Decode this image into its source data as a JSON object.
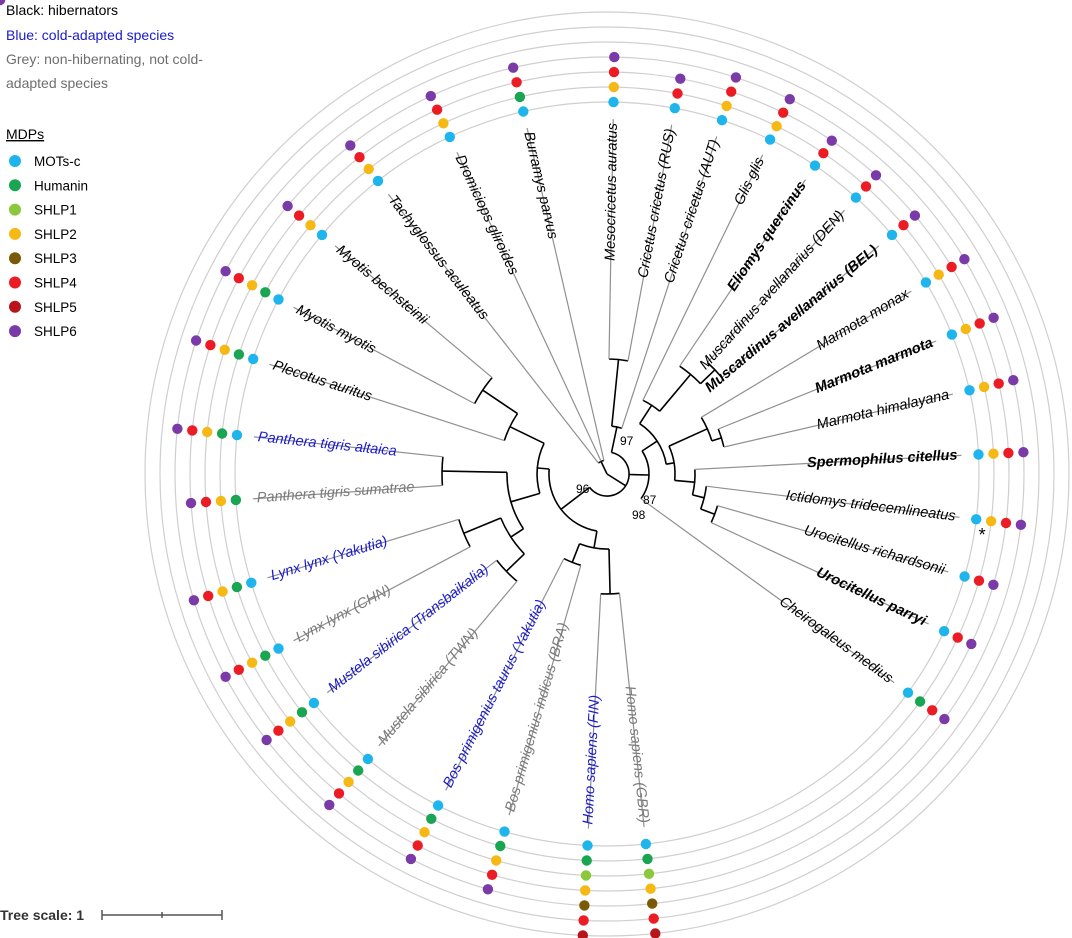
{
  "legend": {
    "lines": [
      {
        "text": "Black: hibernators",
        "color": "#000000"
      },
      {
        "text": "Blue: cold-adapted species",
        "color": "#1a1acc"
      },
      {
        "text": "Grey: non-hibernating, not cold-",
        "color": "#6e6e6e"
      },
      {
        "text": "adapted species",
        "color": "#6e6e6e"
      }
    ],
    "mdp_title": "MDPs",
    "mdps": [
      {
        "name": "MOTs-c",
        "color": "#1eb4ec"
      },
      {
        "name": "Humanin",
        "color": "#1aa552"
      },
      {
        "name": "SHLP1",
        "color": "#8cc83c"
      },
      {
        "name": "SHLP2",
        "color": "#f5b814"
      },
      {
        "name": "SHLP3",
        "color": "#7a5a05"
      },
      {
        "name": "SHLP4",
        "color": "#ec1c24"
      },
      {
        "name": "SHLP5",
        "color": "#b8141c"
      },
      {
        "name": "SHLP6",
        "color": "#7a3aa8"
      }
    ]
  },
  "species": [
    {
      "name": "Mesocricetus auratus",
      "group": "hibernator",
      "mdps": [
        0,
        3,
        5,
        7
      ]
    },
    {
      "name": "Cricetus cricetus (RUS)",
      "group": "hibernator",
      "mdps": [
        0,
        5,
        7
      ]
    },
    {
      "name": "Cricetus cricetus (AUT)",
      "group": "hibernator",
      "mdps": [
        0,
        3,
        5,
        7
      ]
    },
    {
      "name": "Glis glis",
      "group": "hibernator",
      "mdps": [
        0,
        3,
        5,
        7
      ]
    },
    {
      "name": "Eliomys quercinus",
      "group": "hibernator",
      "bold": true,
      "mdps": [
        0,
        5,
        7
      ]
    },
    {
      "name": "Muscardinus avellanarius (DEN)",
      "group": "hibernator",
      "mdps": [
        0,
        5,
        7
      ]
    },
    {
      "name": "Muscardinus avellanarius (BEL)",
      "group": "hibernator",
      "bold": true,
      "mdps": [
        0,
        5,
        7
      ]
    },
    {
      "name": "Marmota monax",
      "group": "hibernator",
      "mdps": [
        0,
        3,
        5,
        7
      ]
    },
    {
      "name": "Marmota marmota",
      "group": "hibernator",
      "bold": true,
      "mdps": [
        0,
        3,
        5,
        7
      ]
    },
    {
      "name": "Marmota himalayana",
      "group": "hibernator",
      "mdps": [
        0,
        3,
        5,
        7
      ]
    },
    {
      "name": "Spermophilus citellus",
      "group": "hibernator",
      "bold": true,
      "mdps": [
        0,
        3,
        5,
        7
      ]
    },
    {
      "name": "Ictidomys tridecemlineatus",
      "group": "hibernator",
      "mdps": [
        0,
        3,
        5,
        7
      ],
      "asterisk": "*"
    },
    {
      "name": "Urocitellus richardsonii",
      "group": "hibernator",
      "mdps": [
        0,
        5,
        7
      ]
    },
    {
      "name": "Urocitellus parryi",
      "group": "hibernator",
      "bold": true,
      "mdps": [
        0,
        5,
        7
      ]
    },
    {
      "name": "Cheirogaleus medius",
      "group": "hibernator",
      "mdps": [
        0,
        1,
        5,
        7
      ]
    },
    {
      "name": "Homo sapiens (GBR)",
      "group": "non-hibernating",
      "mdps": [
        0,
        1,
        2,
        3,
        4,
        5,
        6,
        7
      ]
    },
    {
      "name": "Homo sapiens (FIN)",
      "group": "cold-adapted",
      "mdps": [
        0,
        1,
        2,
        3,
        4,
        5,
        6,
        7
      ]
    },
    {
      "name": "Bos primigenius indicus (BRA)",
      "group": "non-hibernating",
      "mdps": [
        0,
        1,
        3,
        5,
        7
      ]
    },
    {
      "name": "Bos primigenius taurus (Yakutia)",
      "group": "cold-adapted",
      "mdps": [
        0,
        1,
        3,
        5,
        7
      ]
    },
    {
      "name": "Mustela sibirica (TWN)",
      "group": "non-hibernating",
      "mdps": [
        0,
        1,
        3,
        5,
        7
      ]
    },
    {
      "name": "Mustela sibirica (Transbaikalia)",
      "group": "cold-adapted",
      "mdps": [
        0,
        1,
        3,
        5,
        7
      ]
    },
    {
      "name": "Lynx lynx (CHN)",
      "group": "non-hibernating",
      "mdps": [
        0,
        1,
        3,
        5,
        7
      ]
    },
    {
      "name": "Lynx lynx (Yakutia)",
      "group": "cold-adapted",
      "mdps": [
        0,
        1,
        3,
        5,
        7
      ]
    },
    {
      "name": "Panthera tigris sumatrae",
      "group": "non-hibernating",
      "mdps": [
        1,
        3,
        5,
        7
      ]
    },
    {
      "name": "Panthera tigris altaica",
      "group": "cold-adapted",
      "mdps": [
        0,
        1,
        3,
        5,
        7
      ]
    },
    {
      "name": "Plecotus auritus",
      "group": "hibernator",
      "mdps": [
        0,
        1,
        3,
        5,
        7
      ]
    },
    {
      "name": "Myotis myotis",
      "group": "hibernator",
      "mdps": [
        0,
        1,
        3,
        5,
        7
      ]
    },
    {
      "name": "Myotis bechsteinii",
      "group": "hibernator",
      "mdps": [
        0,
        3,
        5,
        7
      ]
    },
    {
      "name": "Tachyglossus aculeatus",
      "group": "hibernator",
      "mdps": [
        0,
        3,
        5,
        7
      ]
    },
    {
      "name": "Dromiciops gliroides",
      "group": "hibernator",
      "mdps": [
        0,
        3,
        5,
        7
      ]
    },
    {
      "name": "Burramys parvus",
      "group": "hibernator",
      "mdps": [
        0,
        1,
        5,
        7
      ]
    }
  ],
  "group_colors": {
    "hibernator": "#000000",
    "cold-adapted": "#1a1acc",
    "non-hibernating": "#7a7a7a"
  },
  "supports": [
    "97",
    "96",
    "87",
    "98"
  ],
  "scale": {
    "label": "Tree scale: 1"
  }
}
